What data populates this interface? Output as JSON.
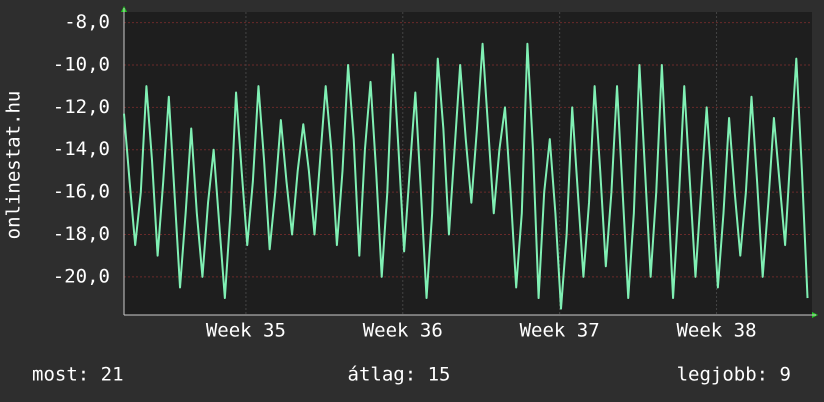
{
  "chart_data": {
    "type": "line",
    "y_label": "onlinestat.hu",
    "x": [
      0,
      0.25,
      0.5,
      0.75,
      1,
      1.25,
      1.5,
      1.75,
      2,
      2.25,
      2.5,
      2.75,
      3,
      3.25,
      3.5,
      3.75,
      4,
      4.25,
      4.5,
      4.75,
      5,
      5.25,
      5.5,
      5.75,
      6,
      6.25,
      6.5,
      6.75,
      7,
      7.25,
      7.5,
      7.75,
      8,
      8.25,
      8.5,
      8.75,
      9,
      9.25,
      9.5,
      9.75,
      10,
      10.25,
      10.5,
      10.75,
      11,
      11.25,
      11.5,
      11.75,
      12,
      12.25,
      12.5,
      12.75,
      13,
      13.25,
      13.5,
      13.75,
      14,
      14.25,
      14.5,
      14.75,
      15,
      15.25,
      15.5,
      15.75,
      16,
      16.25,
      16.5,
      16.75,
      17,
      17.25,
      17.5,
      17.75,
      18,
      18.25,
      18.5,
      18.75,
      19,
      19.25,
      19.5,
      19.75,
      20,
      20.25,
      20.5,
      20.75,
      21,
      21.25,
      21.5,
      21.75,
      22,
      22.25,
      22.5,
      22.75,
      23,
      23.25,
      23.5,
      23.75,
      24,
      24.25,
      24.5,
      24.75,
      25,
      25.25,
      25.5,
      25.75,
      26,
      26.25,
      26.5,
      26.75,
      27,
      27.25,
      27.5,
      27.75,
      28,
      28.25,
      28.5,
      28.75,
      29,
      29.25,
      29.5,
      29.75,
      30,
      30.25,
      30.5
    ],
    "series": [
      {
        "color": "#80f0b4",
        "values": [
          -12.3,
          -15.5,
          -18.5,
          -16,
          -11,
          -14.5,
          -19,
          -15.5,
          -11.5,
          -16,
          -20.5,
          -17,
          -13,
          -17,
          -20,
          -16.5,
          -14,
          -17.5,
          -21,
          -17,
          -11.3,
          -15,
          -18.5,
          -15.5,
          -11,
          -14.5,
          -18.7,
          -16,
          -12.6,
          -15.5,
          -18,
          -15,
          -12.8,
          -15,
          -18,
          -14.5,
          -11,
          -14,
          -18.5,
          -15,
          -10,
          -13.5,
          -19,
          -14,
          -10.8,
          -15,
          -20,
          -16,
          -9.5,
          -14,
          -18.8,
          -15,
          -11.3,
          -16,
          -21,
          -17,
          -9.7,
          -13,
          -18,
          -14,
          -10,
          -13.5,
          -16.5,
          -13,
          -9,
          -13,
          -17,
          -14,
          -12,
          -16,
          -20.5,
          -17,
          -9,
          -14,
          -21,
          -16,
          -13.5,
          -17,
          -21.5,
          -18,
          -12,
          -16,
          -20,
          -16.5,
          -11,
          -15,
          -19.5,
          -16,
          -11,
          -16,
          -21,
          -17,
          -10,
          -15,
          -20,
          -16,
          -10,
          -15.5,
          -21,
          -16.5,
          -11,
          -15.5,
          -20,
          -16,
          -12,
          -16,
          -20.5,
          -17,
          -12.5,
          -16,
          -19,
          -16,
          -11.5,
          -15.5,
          -20,
          -16.5,
          -12.5,
          -15.5,
          -18.5,
          -14,
          -9.7,
          -15,
          -21
        ]
      }
    ],
    "xlim": [
      0,
      30.7
    ],
    "xticks": [
      {
        "value": 5.44,
        "label": "Week 35"
      },
      {
        "value": 12.44,
        "label": "Week 36"
      },
      {
        "value": 19.44,
        "label": "Week 37"
      },
      {
        "value": 26.44,
        "label": "Week 38"
      }
    ],
    "ylim": [
      -21.8,
      -7.5
    ],
    "yticks": [
      {
        "value": -20,
        "label": "-20,0"
      },
      {
        "value": -18,
        "label": "-18,0"
      },
      {
        "value": -16,
        "label": "-16,0"
      },
      {
        "value": -14,
        "label": "-14,0"
      },
      {
        "value": -12,
        "label": "-12,0"
      },
      {
        "value": -10,
        "label": "-10,0"
      },
      {
        "value": -8,
        "label": "-8,0"
      }
    ],
    "grid": true,
    "footer": [
      "most: 21",
      "átlag: 15",
      "legjobb: 9"
    ]
  }
}
